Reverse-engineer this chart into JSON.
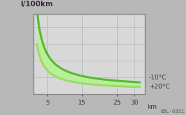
{
  "title": "l/100km",
  "xlabel": "km",
  "bg_color": "#b8b8b8",
  "plot_bg_color": "#d8d8d8",
  "frame_color": "#888888",
  "grid_color": "#bbbbbb",
  "x_ticks": [
    5,
    15,
    25,
    30
  ],
  "curve_cold_color": "#55bb33",
  "curve_warm_color": "#99dd66",
  "fill_color": "#bbee99",
  "label_cold": "-10°C",
  "label_warm": "+20°C",
  "watermark": "B5L-0351",
  "xlim": [
    1.0,
    33.0
  ],
  "ylim": [
    0,
    12
  ],
  "tick_color": "#555555",
  "text_color": "#333333"
}
